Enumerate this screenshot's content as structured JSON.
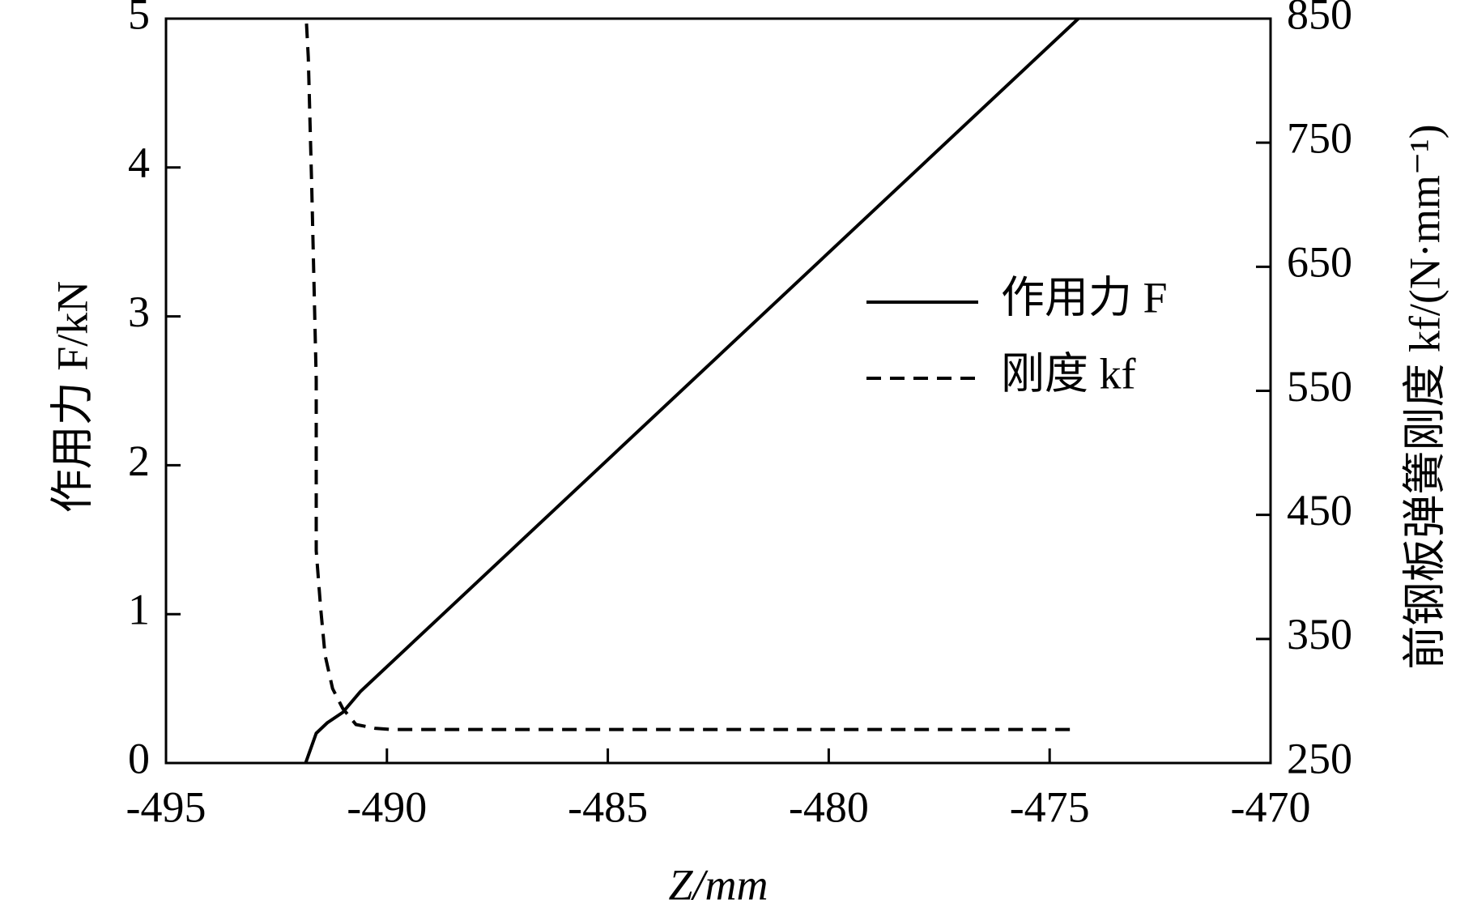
{
  "chart_data": {
    "type": "line",
    "xlabel": "Z/mm",
    "ylabel": "作用力 F/kN",
    "y2label": "前钢板弹簧刚度 kf/(N·mm⁻¹)",
    "xlim": [
      -495,
      -470
    ],
    "xticks": [
      -495,
      -490,
      -485,
      -480,
      -475,
      -470
    ],
    "ylim": [
      0,
      5
    ],
    "yticks": [
      0,
      1,
      2,
      3,
      4,
      5
    ],
    "y2lim": [
      250,
      850
    ],
    "y2ticks": [
      250,
      350,
      450,
      550,
      650,
      750,
      850
    ],
    "legend": "upper-right",
    "series": [
      {
        "name": "作用力 F",
        "color": "#000000",
        "dash": false,
        "x": [
          -491.84,
          -491.6,
          -491.35,
          -491.0,
          -490.6,
          -474.35
        ],
        "values": [
          0,
          0.2,
          0.27,
          0.34,
          0.48,
          5
        ]
      },
      {
        "name": "刚度 kf",
        "color": "#000000",
        "dash": true,
        "axis": "y2",
        "x": [
          -491.82,
          -491.78,
          -491.7,
          -491.6,
          -491.6,
          -491.5,
          -491.4,
          -491.23,
          -491.0,
          -490.7,
          -490.27,
          -489.9,
          -474.35
        ],
        "values": [
          846,
          819,
          712,
          559,
          421,
          375,
          337,
          310,
          294,
          281,
          278,
          277,
          277
        ]
      }
    ]
  }
}
